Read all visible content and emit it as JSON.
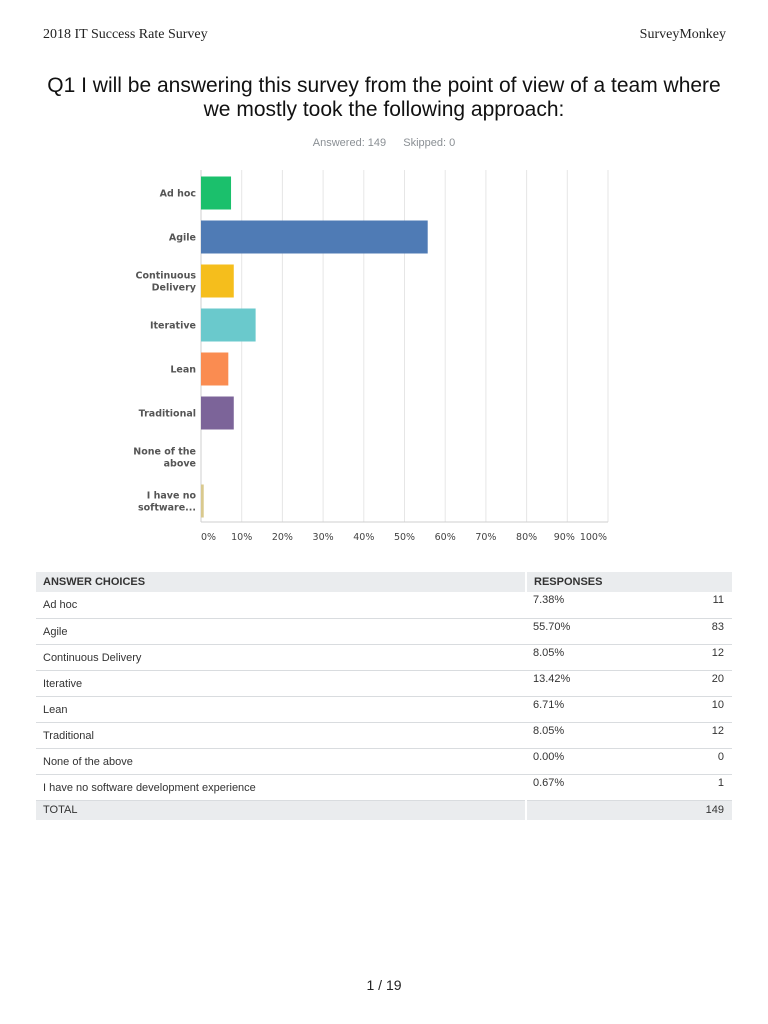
{
  "header": {
    "left": "2018 IT Success Rate Survey",
    "right": "SurveyMonkey"
  },
  "question": {
    "title_line1": "Q1 I will be answering this survey from the point of view of a team where",
    "title_line2": "we mostly took the following approach:",
    "answered": "Answered: 149",
    "skipped": "Skipped: 0"
  },
  "chart_data": {
    "type": "bar",
    "orientation": "horizontal",
    "categories": [
      [
        "Ad hoc"
      ],
      [
        "Agile"
      ],
      [
        "Continuous",
        "Delivery"
      ],
      [
        "Iterative"
      ],
      [
        "Lean"
      ],
      [
        "Traditional"
      ],
      [
        "None of the",
        "above"
      ],
      [
        "I have no",
        "software..."
      ]
    ],
    "values": [
      7.38,
      55.7,
      8.05,
      13.42,
      6.71,
      8.05,
      0.0,
      0.67
    ],
    "colors": [
      "#1bc06c",
      "#4f7bb5",
      "#f5be1c",
      "#6ac9cc",
      "#fa8c51",
      "#7c6499",
      "#9e9e9e",
      "#d9c98e"
    ],
    "xlim": [
      0,
      100
    ],
    "xticks": [
      "0%",
      "10%",
      "20%",
      "30%",
      "40%",
      "50%",
      "60%",
      "70%",
      "80%",
      "90%",
      "100%"
    ],
    "grid": true
  },
  "table": {
    "head_choice": "ANSWER CHOICES",
    "head_responses": "RESPONSES",
    "rows": [
      {
        "choice": "Ad hoc",
        "pct": "7.38%",
        "count": "11"
      },
      {
        "choice": "Agile",
        "pct": "55.70%",
        "count": "83"
      },
      {
        "choice": "Continuous Delivery",
        "pct": "8.05%",
        "count": "12"
      },
      {
        "choice": "Iterative",
        "pct": "13.42%",
        "count": "20"
      },
      {
        "choice": "Lean",
        "pct": "6.71%",
        "count": "10"
      },
      {
        "choice": "Traditional",
        "pct": "8.05%",
        "count": "12"
      },
      {
        "choice": "None of the above",
        "pct": "0.00%",
        "count": "0"
      },
      {
        "choice": "I have no software development experience",
        "pct": "0.67%",
        "count": "1"
      }
    ],
    "total_label": "TOTAL",
    "total_count": "149"
  },
  "footer": {
    "page": "1 / 19"
  }
}
